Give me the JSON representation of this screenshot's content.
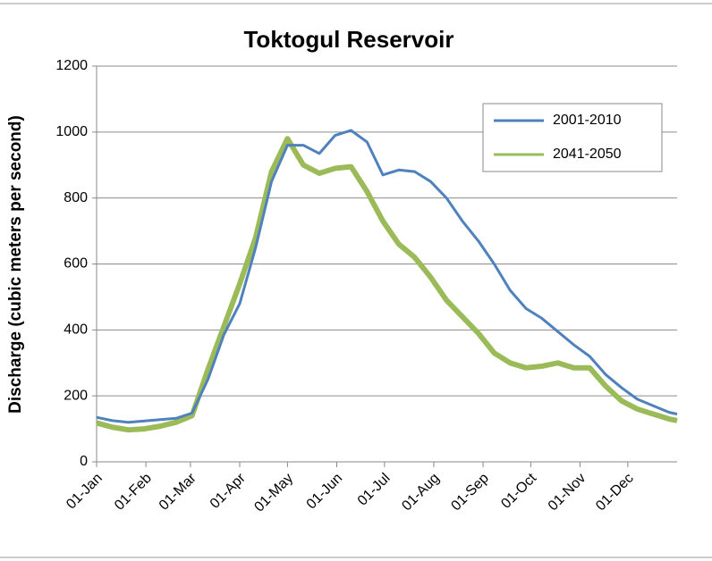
{
  "chart_data": {
    "type": "line",
    "title": "Toktogul Reservoir",
    "y_label": "Discharge (cubic meters per second)",
    "x": [
      0,
      10,
      20,
      30,
      40,
      50,
      60,
      70,
      80,
      90,
      100,
      110,
      120,
      130,
      140,
      150,
      160,
      170,
      180,
      190,
      200,
      210,
      220,
      230,
      240,
      250,
      260,
      270,
      280,
      290,
      300,
      310,
      320,
      330,
      340,
      350,
      360,
      365
    ],
    "series": [
      {
        "name": "2001-2010",
        "color": "#4f81bd",
        "values": [
          135,
          125,
          120,
          124,
          128,
          132,
          148,
          250,
          385,
          480,
          650,
          850,
          960,
          960,
          935,
          990,
          1005,
          970,
          870,
          885,
          880,
          850,
          800,
          730,
          670,
          600,
          520,
          465,
          435,
          395,
          355,
          320,
          265,
          225,
          190,
          170,
          150,
          145
        ]
      },
      {
        "name": "2041-2050",
        "color": "#9bbb59",
        "values": [
          118,
          105,
          97,
          100,
          108,
          120,
          140,
          280,
          410,
          540,
          680,
          880,
          980,
          900,
          875,
          890,
          895,
          820,
          730,
          660,
          620,
          560,
          490,
          440,
          390,
          330,
          300,
          285,
          290,
          300,
          285,
          285,
          230,
          185,
          160,
          145,
          130,
          125
        ]
      }
    ],
    "xlim": [
      0,
      365
    ],
    "xticks": [
      {
        "value": 0,
        "label": "01-Jan"
      },
      {
        "value": 31,
        "label": "01-Feb"
      },
      {
        "value": 59,
        "label": "01-Mar"
      },
      {
        "value": 90,
        "label": "01-Apr"
      },
      {
        "value": 120,
        "label": "01-May"
      },
      {
        "value": 151,
        "label": "01-Jun"
      },
      {
        "value": 181,
        "label": "01-Jul"
      },
      {
        "value": 212,
        "label": "01-Aug"
      },
      {
        "value": 243,
        "label": "01-Sep"
      },
      {
        "value": 273,
        "label": "01-Oct"
      },
      {
        "value": 304,
        "label": "01-Nov"
      },
      {
        "value": 334,
        "label": "01-Dec"
      }
    ],
    "ylim": [
      0,
      1200
    ],
    "yticks": [
      0,
      200,
      400,
      600,
      800,
      1000,
      1200
    ],
    "grid": true,
    "legend": "upper right"
  }
}
